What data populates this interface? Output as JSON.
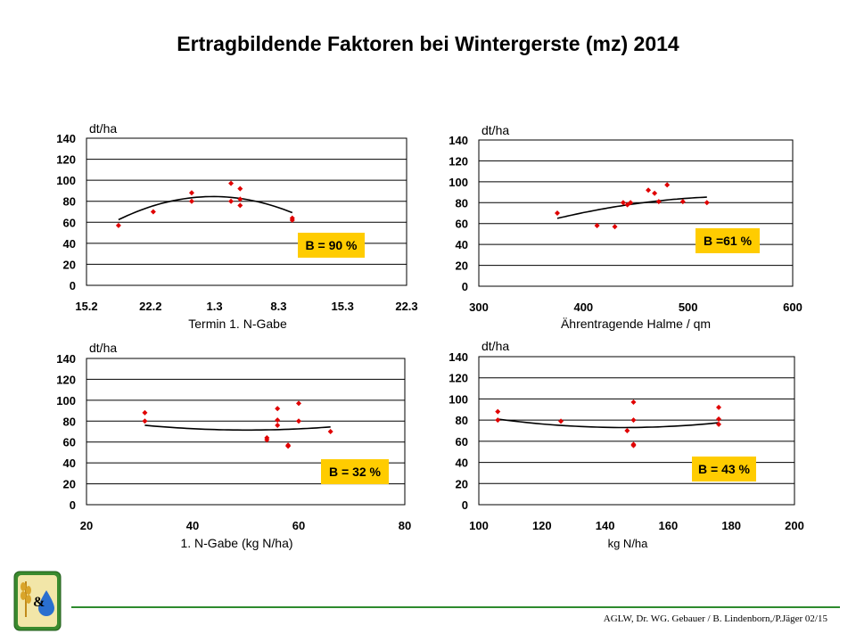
{
  "title": "Ertragbildende Faktoren bei Wintergerste (mz) 2014",
  "footer": {
    "credit": "AGLW, Dr. WG. Gebauer / B. Lindenborn,/P.Jäger 02/15"
  },
  "colors": {
    "points": "#e00000",
    "badge": "#ffcc00",
    "grid": "#000000",
    "trend": "#000000",
    "footer_line": "#2e8b2e"
  },
  "logo": {
    "name": "wheat-and-water-drop-logo",
    "text": "&"
  },
  "chart_data": [
    {
      "type": "scatter",
      "ylabel": "dt/ha",
      "xlabel": "Termin 1. N-Gabe",
      "xticks": [
        "15.2",
        "22.2",
        "1.3",
        "8.3",
        "15.3",
        "22.3"
      ],
      "xlim": [
        0,
        35
      ],
      "ylim": [
        0,
        140
      ],
      "yticks": [
        0,
        20,
        40,
        60,
        80,
        100,
        120,
        140
      ],
      "badge": "B = 90 %",
      "points": [
        [
          3.5,
          57
        ],
        [
          7.3,
          70
        ],
        [
          11.5,
          80
        ],
        [
          11.5,
          88
        ],
        [
          15.8,
          80
        ],
        [
          15.8,
          97
        ],
        [
          16.8,
          76
        ],
        [
          16.8,
          92
        ],
        [
          16.8,
          82
        ],
        [
          22.5,
          62
        ],
        [
          22.5,
          64
        ]
      ],
      "trend": {
        "kind": "quadratic",
        "x_range": [
          3.5,
          22.5
        ],
        "coef": [
          -0.2057,
          5.7,
          45.0
        ]
      }
    },
    {
      "type": "scatter",
      "ylabel": "dt/ha",
      "xlabel": "Ährentragende Halme / qm",
      "xticks": [
        "300",
        "400",
        "500",
        "600"
      ],
      "xlim": [
        300,
        600
      ],
      "ylim": [
        0,
        140
      ],
      "yticks": [
        0,
        20,
        40,
        60,
        80,
        100,
        120,
        140
      ],
      "badge": "B =61 %",
      "points": [
        [
          375,
          70
        ],
        [
          413,
          58
        ],
        [
          430,
          57
        ],
        [
          438,
          80
        ],
        [
          442,
          78
        ],
        [
          445,
          80
        ],
        [
          462,
          92
        ],
        [
          468,
          89
        ],
        [
          472,
          81
        ],
        [
          480,
          97
        ],
        [
          495,
          81
        ],
        [
          518,
          80
        ]
      ],
      "trend": {
        "kind": "quadratic",
        "x_range": [
          375,
          518
        ],
        "coef": [
          -0.00067,
          0.7407,
          -118.6
        ]
      }
    },
    {
      "type": "scatter",
      "ylabel": "dt/ha",
      "xlabel": "1. N-Gabe (kg N/ha)",
      "xticks": [
        "20",
        "40",
        "60",
        "80"
      ],
      "xlim": [
        20,
        80
      ],
      "ylim": [
        0,
        140
      ],
      "yticks": [
        0,
        20,
        40,
        60,
        80,
        100,
        120,
        140
      ],
      "badge": "B = 32 %",
      "points": [
        [
          31,
          88
        ],
        [
          31,
          80
        ],
        [
          54,
          62
        ],
        [
          54,
          64
        ],
        [
          56,
          92
        ],
        [
          56,
          81
        ],
        [
          56,
          76
        ],
        [
          58,
          57
        ],
        [
          58,
          56
        ],
        [
          60,
          97
        ],
        [
          60,
          80
        ],
        [
          66,
          70
        ]
      ],
      "trend": {
        "kind": "quadratic",
        "x_range": [
          31,
          66
        ],
        "coef": [
          0.0122,
          -1.2286,
          102.4
        ]
      }
    },
    {
      "type": "scatter",
      "ylabel": "dt/ha",
      "xlabel": "kg N/ha",
      "xticks": [
        "100",
        "120",
        "140",
        "160",
        "180",
        "200"
      ],
      "xlim": [
        100,
        200
      ],
      "ylim": [
        0,
        140
      ],
      "yticks": [
        0,
        20,
        40,
        60,
        80,
        100,
        120,
        140
      ],
      "badge": "B = 43 %",
      "points": [
        [
          106,
          88
        ],
        [
          106,
          80
        ],
        [
          126,
          79
        ],
        [
          147,
          70
        ],
        [
          149,
          97
        ],
        [
          149,
          80
        ],
        [
          149,
          57
        ],
        [
          149,
          56
        ],
        [
          176,
          92
        ],
        [
          176,
          81
        ],
        [
          176,
          76
        ]
      ],
      "trend": {
        "kind": "quadratic",
        "x_range": [
          106,
          176
        ],
        "coef": [
          0.00501,
          -1.4624,
          179.7
        ]
      }
    }
  ]
}
